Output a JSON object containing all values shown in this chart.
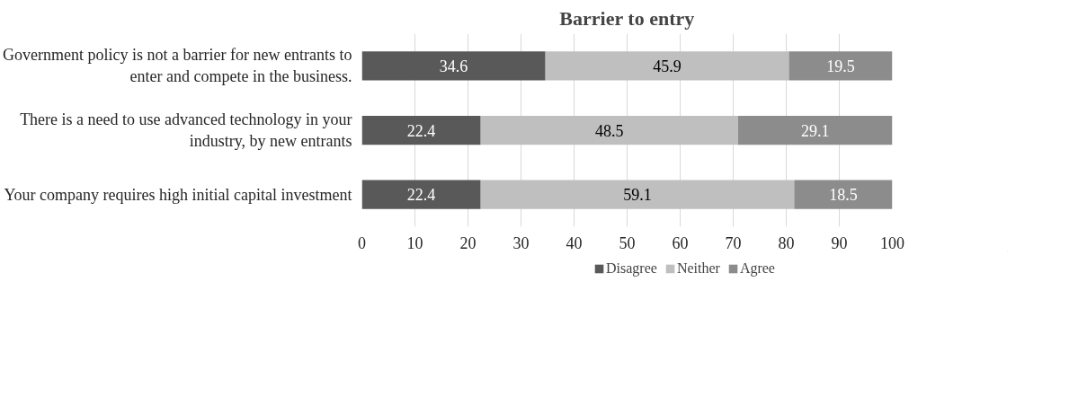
{
  "chart_data": {
    "type": "bar",
    "orientation": "horizontal",
    "stacked": true,
    "title": "Barrier to entry",
    "categories": [
      "Government policy is not a barrier for new entrants to enter and compete in the business.",
      "There is a need to use advanced technology in your industry, by new entrants",
      "Your company requires high initial capital investment"
    ],
    "series": [
      {
        "name": "Disagree",
        "color": "#595959",
        "values": [
          34.6,
          22.4,
          22.4
        ]
      },
      {
        "name": "Neither",
        "color": "#bfbfbf",
        "values": [
          45.9,
          48.5,
          59.1
        ]
      },
      {
        "name": "Agree",
        "color": "#8c8c8c",
        "values": [
          19.5,
          29.1,
          18.5
        ]
      }
    ],
    "xlim": [
      0,
      100
    ],
    "xticks": [
      0,
      10,
      20,
      30,
      40,
      50,
      60,
      70,
      80,
      90,
      100
    ],
    "grid": "x",
    "legend": "bottom",
    "data_labels": true
  }
}
